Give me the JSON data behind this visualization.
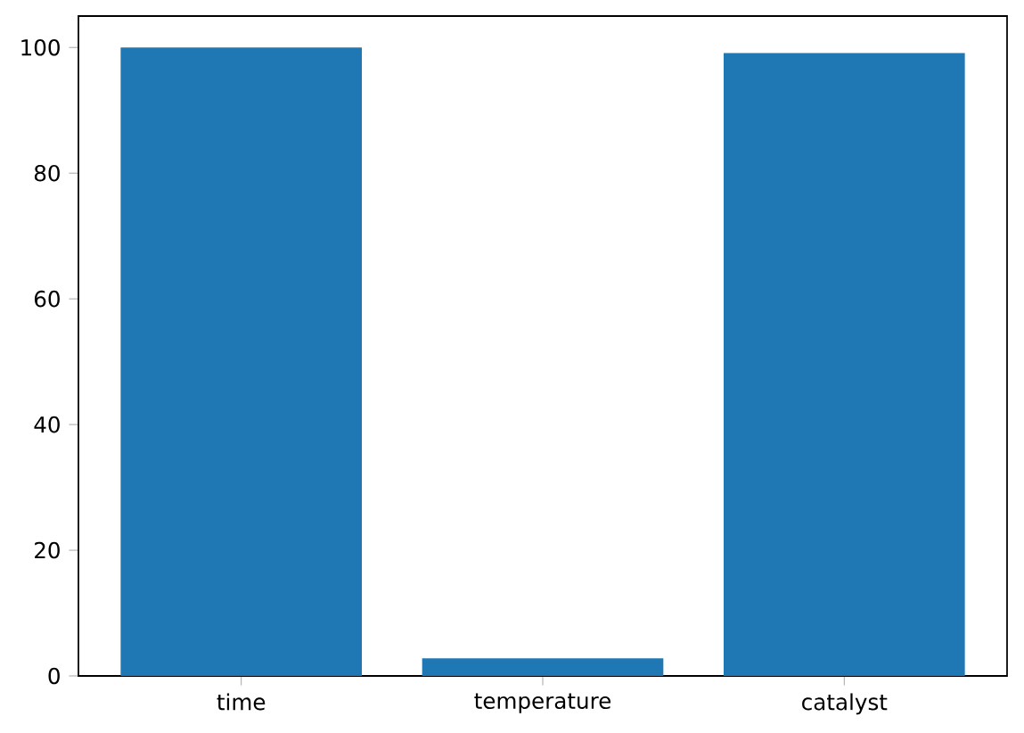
{
  "chart_data": {
    "type": "bar",
    "categories": [
      "time",
      "temperature",
      "catalyst"
    ],
    "values": [
      100,
      2.8,
      99.1
    ],
    "color": "#1f77b4",
    "ylim": [
      0,
      105
    ],
    "yticks": [
      0,
      20,
      40,
      60,
      80,
      100
    ]
  }
}
